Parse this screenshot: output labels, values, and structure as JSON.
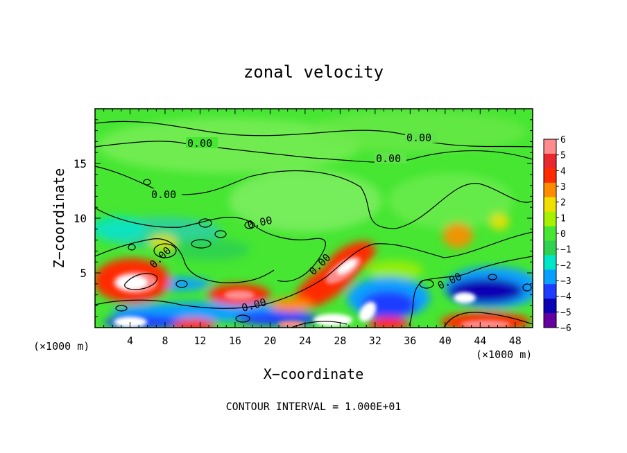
{
  "chart_data": {
    "type": "heatmap",
    "title": "zonal velocity",
    "xlabel": "X−coordinate",
    "ylabel": "Z−coordinate",
    "x_unit_left": "(×1000 m)",
    "x_unit_right": "(×1000 m)",
    "footer": "CONTOUR INTERVAL = 1.000E+01",
    "xlim": [
      0,
      50
    ],
    "ylim": [
      0,
      20
    ],
    "x_ticks": [
      "4",
      "8",
      "12",
      "16",
      "20",
      "24",
      "28",
      "32",
      "36",
      "40",
      "44",
      "48"
    ],
    "y_ticks": [
      "5",
      "10",
      "15"
    ],
    "colorbar": {
      "labels": [
        "6",
        "5",
        "4",
        "3",
        "2",
        "1",
        "0",
        "−1",
        "−2",
        "−3",
        "−4",
        "−5",
        "−6"
      ],
      "colors": [
        "#ff8c8c",
        "#e8282d",
        "#ff2a00",
        "#ff8c00",
        "#f0e000",
        "#a6f000",
        "#46e632",
        "#2ed250",
        "#00e6c8",
        "#0aa0ff",
        "#1e3cff",
        "#0a00b4",
        "#6400a0"
      ]
    },
    "contour_labels": [
      "0.00",
      "0.00",
      "0.00",
      "0.00",
      "0.00",
      "0.00",
      "0.00",
      "0.00"
    ]
  }
}
